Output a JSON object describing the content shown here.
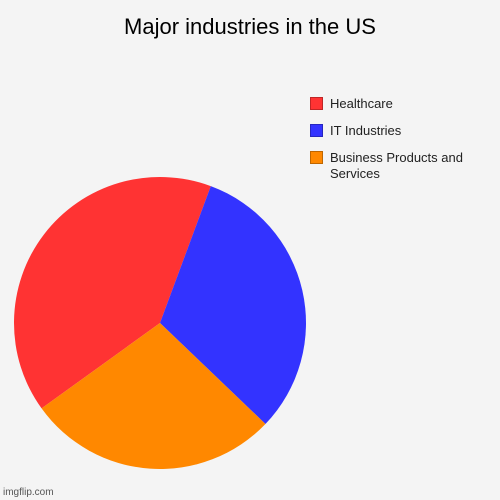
{
  "chart_data": {
    "type": "pie",
    "title": "Major industries in the US",
    "categories": [
      "Healthcare",
      "IT Industries",
      "Business Products and Services"
    ],
    "values": [
      40.6,
      31.5,
      27.9
    ],
    "colors": [
      "#ff3333",
      "#3333ff",
      "#ff8800"
    ],
    "legend": "right"
  },
  "watermark": "imgflip.com"
}
